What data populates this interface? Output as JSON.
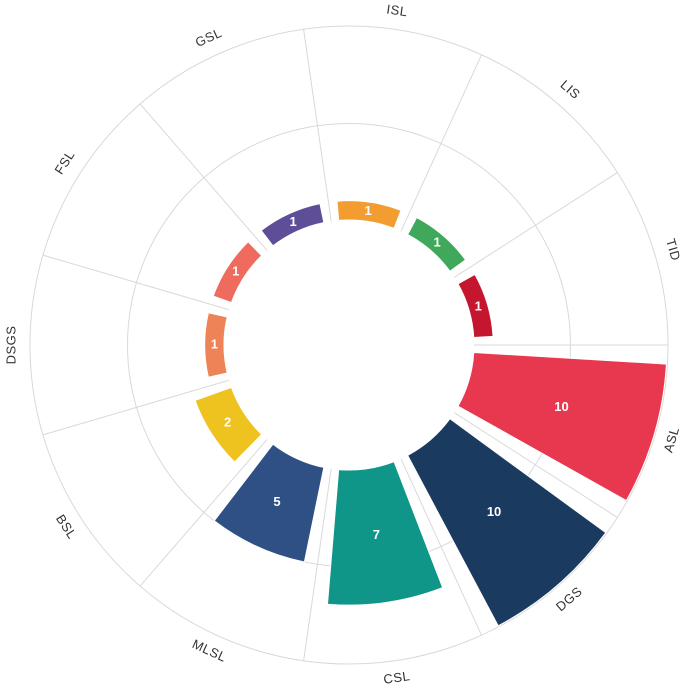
{
  "chart_data": {
    "type": "radial-bar",
    "categories": [
      "ASL",
      "DGS",
      "CSL",
      "MLSL",
      "BSL",
      "DSGS",
      "FSL",
      "GSL",
      "ISL",
      "LIS",
      "TID"
    ],
    "values": [
      10,
      10,
      7,
      5,
      2,
      1,
      1,
      1,
      1,
      1,
      1
    ],
    "colors": [
      "#e8384f",
      "#1b3a5f",
      "#0f9688",
      "#2e5085",
      "#eec21f",
      "#ef8358",
      "#ee6b5e",
      "#5e4e97",
      "#f39c30",
      "#3fa85a",
      "#c4162e"
    ],
    "ylim": [
      0,
      10
    ],
    "yticks": [
      5,
      10
    ],
    "grid": true
  }
}
